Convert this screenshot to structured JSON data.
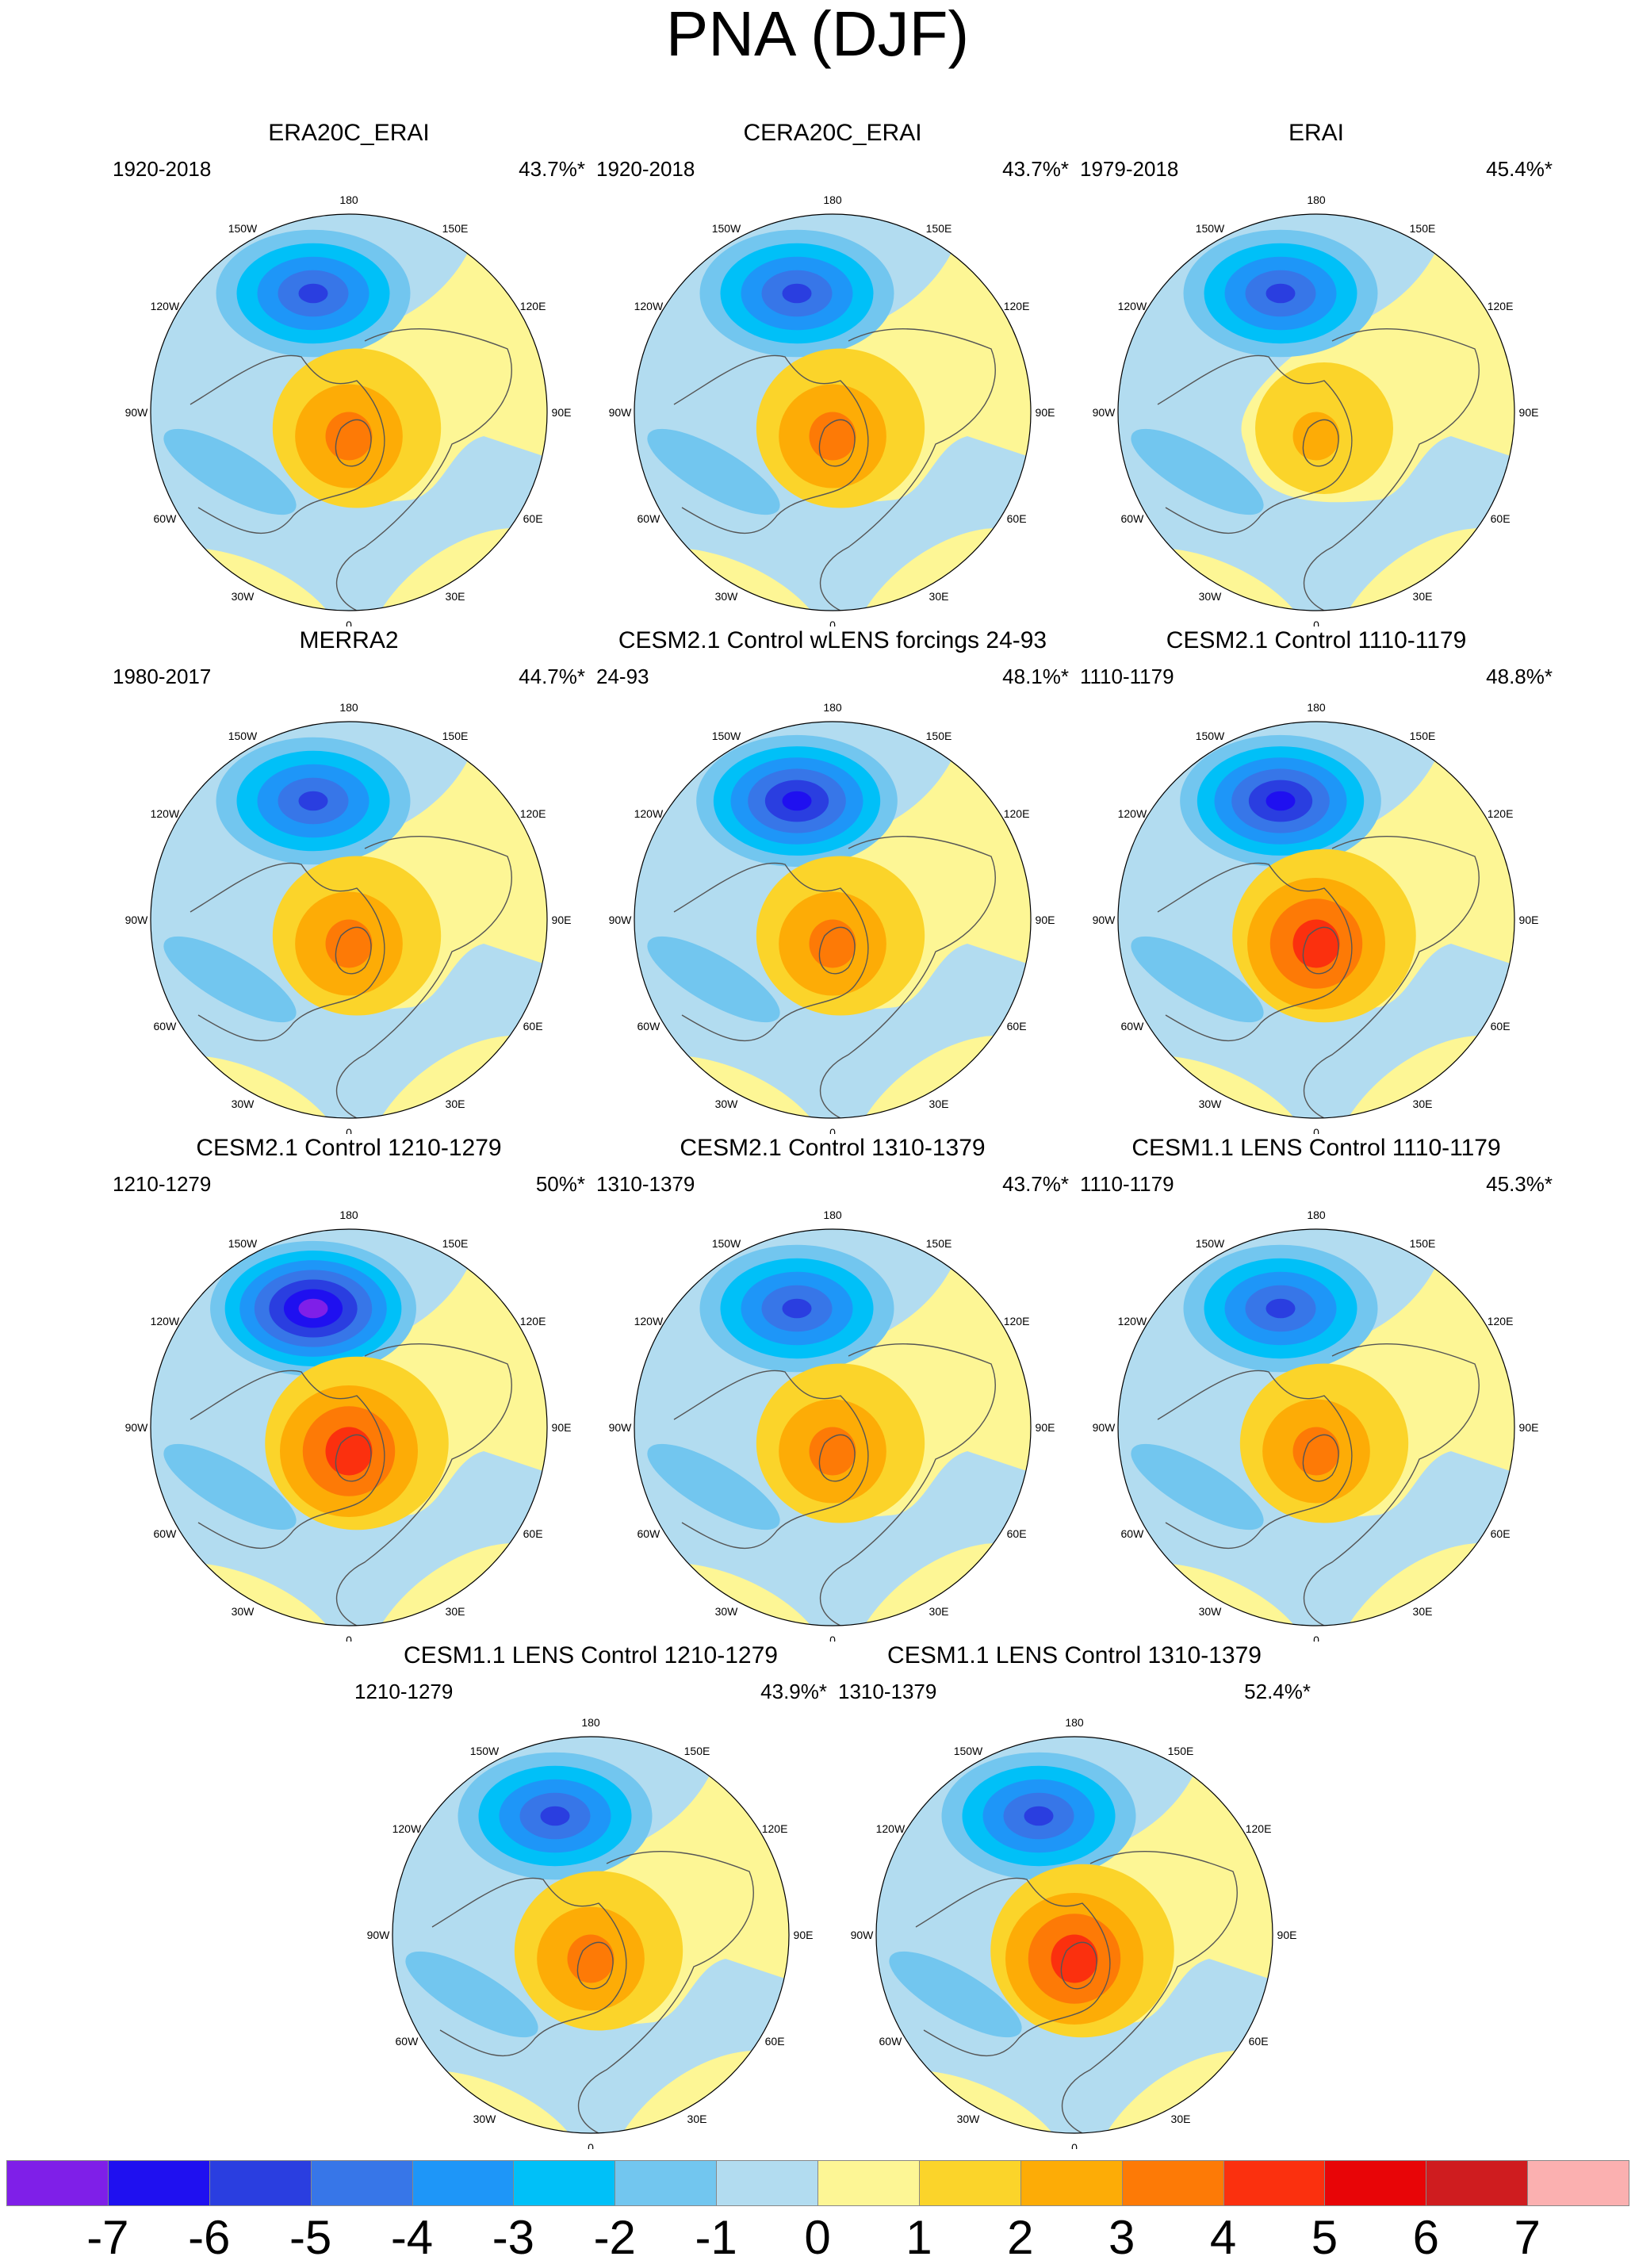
{
  "title": "PNA (DJF)",
  "map_common": {
    "projection": "north polar stereographic",
    "lon_labels": [
      "180",
      "150E",
      "120E",
      "90E",
      "60E",
      "30E",
      "0",
      "30W",
      "60W",
      "90W",
      "120W",
      "150W"
    ]
  },
  "panels": [
    {
      "title": "ERA20C_ERAI",
      "period": "1920-2018",
      "variance": "43.7%*",
      "low": -5,
      "high": 3
    },
    {
      "title": "CERA20C_ERAI",
      "period": "1920-2018",
      "variance": "43.7%*",
      "low": -5,
      "high": 3
    },
    {
      "title": "ERAI",
      "period": "1979-2018",
      "variance": "45.4%*",
      "low": -5,
      "high": 2
    },
    {
      "title": "MERRA2",
      "period": "1980-2017",
      "variance": "44.7%*",
      "low": -5,
      "high": 3
    },
    {
      "title": "CESM2.1 Control wLENS forcings 24-93",
      "period": "24-93",
      "variance": "48.1%*",
      "low": -6,
      "high": 3
    },
    {
      "title": "CESM2.1 Control 1110-1179",
      "period": "1110-1179",
      "variance": "48.8%*",
      "low": -6,
      "high": 4
    },
    {
      "title": "CESM2.1 Control 1210-1279",
      "period": "1210-1279",
      "variance": "50%*",
      "low": -7,
      "high": 4
    },
    {
      "title": "CESM2.1 Control 1310-1379",
      "period": "1310-1379",
      "variance": "43.7%*",
      "low": -5,
      "high": 3
    },
    {
      "title": "CESM1.1 LENS Control 1110-1179",
      "period": "1110-1179",
      "variance": "45.3%*",
      "low": -5,
      "high": 3
    },
    {
      "title": "CESM1.1 LENS Control 1210-1279",
      "period": "1210-1279",
      "variance": "43.9%*",
      "low": -5,
      "high": 3
    },
    {
      "title": "CESM1.1 LENS Control 1310-1379",
      "period": "1310-1379",
      "variance": "52.4%*",
      "low": -5,
      "high": 4
    }
  ],
  "colorbar": {
    "colors": [
      "#7f1fe8",
      "#1f10f0",
      "#2a3ee0",
      "#3776e8",
      "#1e96f8",
      "#00c0f8",
      "#72c6ef",
      "#b2dcf0",
      "#fdf695",
      "#fbd42a",
      "#fdac06",
      "#fd7a06",
      "#fb300e",
      "#e80507",
      "#cf1c1f",
      "#fbb0b0"
    ],
    "labels": [
      "-7",
      "-6",
      "-5",
      "-4",
      "-3",
      "-2",
      "-1",
      "0",
      "1",
      "2",
      "3",
      "4",
      "5",
      "6",
      "7"
    ]
  }
}
